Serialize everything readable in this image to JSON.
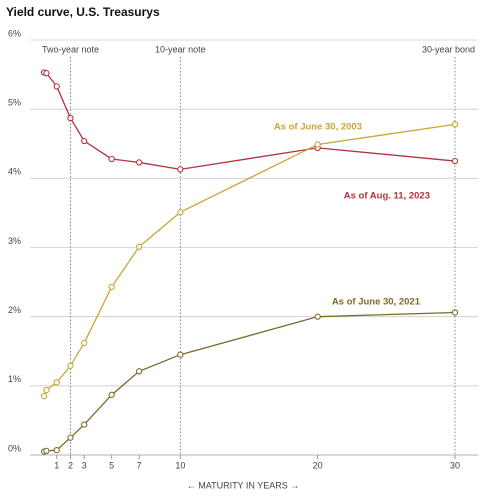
{
  "chart_data": {
    "type": "line",
    "title": "Yield curve, U.S. Treasurys",
    "x_label": "← MATURITY IN YEARS →",
    "xlim": [
      0,
      30
    ],
    "xticks": [
      1,
      2,
      3,
      5,
      7,
      10,
      20,
      30
    ],
    "ylim": [
      0,
      6
    ],
    "yticks": [
      {
        "value": 0,
        "label": "0%"
      },
      {
        "value": 1,
        "label": "1%"
      },
      {
        "value": 2,
        "label": "2%"
      },
      {
        "value": 3,
        "label": "3%"
      },
      {
        "value": 4,
        "label": "4%"
      },
      {
        "value": 5,
        "label": "5%"
      },
      {
        "value": 6,
        "label": "6%"
      }
    ],
    "grid": true,
    "annotations": [
      {
        "text": "Two-year note",
        "x": 2
      },
      {
        "text": "10-year note",
        "x": 10
      },
      {
        "text": "30-year bond",
        "x": 30
      }
    ],
    "x": [
      0.08,
      0.25,
      1,
      2,
      3,
      5,
      7,
      10,
      20,
      30
    ],
    "series": [
      {
        "name": "As of Aug. 11, 2023",
        "color": "#b5323f",
        "values": [
          5.53,
          5.52,
          5.33,
          4.87,
          4.54,
          4.28,
          4.23,
          4.13,
          4.44,
          4.25
        ]
      },
      {
        "name": "As of June 30, 2003",
        "color": "#c9a636",
        "values": [
          0.85,
          0.94,
          1.05,
          1.29,
          1.62,
          2.43,
          3.01,
          3.51,
          4.49,
          4.78
        ]
      },
      {
        "name": "As of June 30, 2021",
        "color": "#7a6a2a",
        "values": [
          0.05,
          0.06,
          0.07,
          0.25,
          0.44,
          0.87,
          1.21,
          1.45,
          2.0,
          2.06
        ]
      }
    ]
  }
}
